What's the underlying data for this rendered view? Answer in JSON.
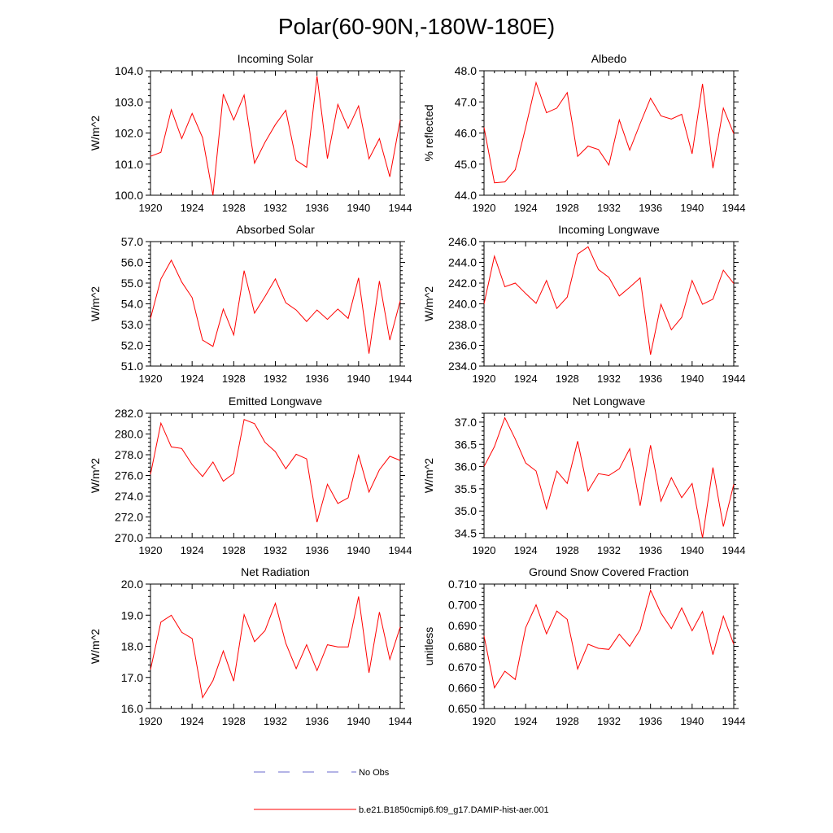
{
  "title": "Polar(60-90N,-180W-180E)",
  "colors": {
    "model_line": "#ff0000",
    "obs_line": "#6a6acd",
    "axis": "#000000"
  },
  "legend": {
    "obs_label": "No Obs",
    "model_label": "b.e21.B1850cmip6.f09_g17.DAMIP-hist-aer.001"
  },
  "chart_data": [
    {
      "type": "line",
      "title": "Incoming Solar",
      "xlabel": "",
      "ylabel": "W/m^2",
      "xlim": [
        1920,
        1944
      ],
      "ylim": [
        100.0,
        104.0
      ],
      "xticks": [
        1920,
        1924,
        1928,
        1932,
        1936,
        1940,
        1944
      ],
      "yticks": [
        "100.0",
        "101.0",
        "102.0",
        "103.0",
        "104.0"
      ],
      "series": [
        {
          "name": "b.e21.B1850cmip6.f09_g17.DAMIP-hist-aer.001",
          "x": [
            1920,
            1921,
            1922,
            1923,
            1924,
            1925,
            1926,
            1927,
            1928,
            1929,
            1930,
            1931,
            1932,
            1933,
            1934,
            1935,
            1936,
            1937,
            1938,
            1939,
            1940,
            1941,
            1942,
            1943,
            1944
          ],
          "values": [
            101.25,
            101.38,
            102.75,
            101.82,
            102.63,
            101.85,
            100.0,
            103.25,
            102.42,
            103.22,
            101.03,
            101.7,
            102.27,
            102.73,
            101.12,
            100.9,
            103.83,
            101.18,
            102.92,
            102.15,
            102.87,
            101.17,
            101.82,
            100.59,
            102.43
          ]
        }
      ]
    },
    {
      "type": "line",
      "title": "Albedo",
      "xlabel": "",
      "ylabel": "% reflected",
      "xlim": [
        1920,
        1944
      ],
      "ylim": [
        44.0,
        48.0
      ],
      "xticks": [
        1920,
        1924,
        1928,
        1932,
        1936,
        1940,
        1944
      ],
      "yticks": [
        "44.0",
        "45.0",
        "46.0",
        "47.0",
        "48.0"
      ],
      "series": [
        {
          "name": "b.e21.B1850cmip6.f09_g17.DAMIP-hist-aer.001",
          "x": [
            1920,
            1921,
            1922,
            1923,
            1924,
            1925,
            1926,
            1927,
            1928,
            1929,
            1930,
            1931,
            1932,
            1933,
            1934,
            1935,
            1936,
            1937,
            1938,
            1939,
            1940,
            1941,
            1942,
            1943,
            1944
          ],
          "values": [
            46.18,
            44.4,
            44.43,
            44.82,
            46.18,
            47.62,
            46.65,
            46.8,
            47.3,
            45.25,
            45.58,
            45.47,
            44.97,
            46.42,
            45.45,
            46.3,
            47.12,
            46.55,
            46.45,
            46.6,
            45.33,
            47.58,
            44.87,
            46.8,
            45.98
          ]
        }
      ]
    },
    {
      "type": "line",
      "title": "Absorbed Solar",
      "xlabel": "",
      "ylabel": "W/m^2",
      "xlim": [
        1920,
        1944
      ],
      "ylim": [
        51.0,
        57.0
      ],
      "xticks": [
        1920,
        1924,
        1928,
        1932,
        1936,
        1940,
        1944
      ],
      "yticks": [
        "51.0",
        "52.0",
        "53.0",
        "54.0",
        "55.0",
        "56.0",
        "57.0"
      ],
      "series": [
        {
          "name": "b.e21.B1850cmip6.f09_g17.DAMIP-hist-aer.001",
          "x": [
            1920,
            1921,
            1922,
            1923,
            1924,
            1925,
            1926,
            1927,
            1928,
            1929,
            1930,
            1931,
            1932,
            1933,
            1934,
            1935,
            1936,
            1937,
            1938,
            1939,
            1940,
            1941,
            1942,
            1943,
            1944
          ],
          "values": [
            53.3,
            55.2,
            56.1,
            55.05,
            54.3,
            52.25,
            51.95,
            53.75,
            52.5,
            55.6,
            53.55,
            54.35,
            55.2,
            54.05,
            53.7,
            53.15,
            53.7,
            53.25,
            53.75,
            53.3,
            55.25,
            51.6,
            55.1,
            52.25,
            54.15
          ]
        }
      ]
    },
    {
      "type": "line",
      "title": "Incoming Longwave",
      "xlabel": "",
      "ylabel": "W/m^2",
      "xlim": [
        1920,
        1944
      ],
      "ylim": [
        234.0,
        246.0
      ],
      "xticks": [
        1920,
        1924,
        1928,
        1932,
        1936,
        1940,
        1944
      ],
      "yticks": [
        "234.0",
        "236.0",
        "238.0",
        "240.0",
        "242.0",
        "244.0",
        "246.0"
      ],
      "series": [
        {
          "name": "b.e21.B1850cmip6.f09_g17.DAMIP-hist-aer.001",
          "x": [
            1920,
            1921,
            1922,
            1923,
            1924,
            1925,
            1926,
            1927,
            1928,
            1929,
            1930,
            1931,
            1932,
            1933,
            1934,
            1935,
            1936,
            1937,
            1938,
            1939,
            1940,
            1941,
            1942,
            1943,
            1944
          ],
          "values": [
            240.0,
            244.6,
            241.65,
            242.0,
            241.0,
            240.05,
            242.25,
            239.55,
            240.65,
            244.8,
            245.5,
            243.3,
            242.55,
            240.75,
            241.6,
            242.5,
            235.1,
            239.95,
            237.5,
            238.7,
            242.25,
            239.95,
            240.45,
            243.25,
            241.95
          ]
        }
      ]
    },
    {
      "type": "line",
      "title": "Emitted Longwave",
      "xlabel": "",
      "ylabel": "W/m^2",
      "xlim": [
        1920,
        1944
      ],
      "ylim": [
        270.0,
        282.0
      ],
      "xticks": [
        1920,
        1924,
        1928,
        1932,
        1936,
        1940,
        1944
      ],
      "yticks": [
        "270.0",
        "272.0",
        "274.0",
        "276.0",
        "278.0",
        "280.0",
        "282.0"
      ],
      "series": [
        {
          "name": "b.e21.B1850cmip6.f09_g17.DAMIP-hist-aer.001",
          "x": [
            1920,
            1921,
            1922,
            1923,
            1924,
            1925,
            1926,
            1927,
            1928,
            1929,
            1930,
            1931,
            1932,
            1933,
            1934,
            1935,
            1936,
            1937,
            1938,
            1939,
            1940,
            1941,
            1942,
            1943,
            1944
          ],
          "values": [
            276.1,
            281.05,
            278.75,
            278.6,
            277.05,
            275.9,
            277.3,
            275.45,
            276.2,
            281.4,
            281.0,
            279.2,
            278.3,
            276.65,
            278.05,
            277.6,
            271.5,
            275.15,
            273.3,
            273.85,
            277.95,
            274.4,
            276.55,
            277.85,
            277.45
          ]
        }
      ]
    },
    {
      "type": "line",
      "title": "Net Longwave",
      "xlabel": "",
      "ylabel": "W/m^2",
      "xlim": [
        1920,
        1944
      ],
      "ylim": [
        34.4,
        37.2
      ],
      "xticks": [
        1920,
        1924,
        1928,
        1932,
        1936,
        1940,
        1944
      ],
      "yticks": [
        "34.5",
        "35.0",
        "35.5",
        "36.0",
        "36.5",
        "37.0"
      ],
      "series": [
        {
          "name": "b.e21.B1850cmip6.f09_g17.DAMIP-hist-aer.001",
          "x": [
            1920,
            1921,
            1922,
            1923,
            1924,
            1925,
            1926,
            1927,
            1928,
            1929,
            1930,
            1931,
            1932,
            1933,
            1934,
            1935,
            1936,
            1937,
            1938,
            1939,
            1940,
            1941,
            1942,
            1943,
            1944
          ],
          "values": [
            36.0,
            36.45,
            37.1,
            36.62,
            36.08,
            35.9,
            35.05,
            35.9,
            35.62,
            36.57,
            35.45,
            35.84,
            35.8,
            35.95,
            36.4,
            35.12,
            36.48,
            35.22,
            35.75,
            35.3,
            35.62,
            34.4,
            35.98,
            34.65,
            35.6
          ]
        }
      ]
    },
    {
      "type": "line",
      "title": "Net Radiation",
      "xlabel": "",
      "ylabel": "W/m^2",
      "xlim": [
        1920,
        1944
      ],
      "ylim": [
        16.0,
        20.0
      ],
      "xticks": [
        1920,
        1924,
        1928,
        1932,
        1936,
        1940,
        1944
      ],
      "yticks": [
        "16.0",
        "17.0",
        "18.0",
        "19.0",
        "20.0"
      ],
      "series": [
        {
          "name": "b.e21.B1850cmip6.f09_g17.DAMIP-hist-aer.001",
          "x": [
            1920,
            1921,
            1922,
            1923,
            1924,
            1925,
            1926,
            1927,
            1928,
            1929,
            1930,
            1931,
            1932,
            1933,
            1934,
            1935,
            1936,
            1937,
            1938,
            1939,
            1940,
            1941,
            1942,
            1943,
            1944
          ],
          "values": [
            17.25,
            18.78,
            19.0,
            18.45,
            18.25,
            16.35,
            16.9,
            17.85,
            16.88,
            19.02,
            18.15,
            18.5,
            19.38,
            18.1,
            17.28,
            18.05,
            17.22,
            18.05,
            17.98,
            17.98,
            19.6,
            17.15,
            19.1,
            17.58,
            18.62
          ]
        }
      ]
    },
    {
      "type": "line",
      "title": "Ground Snow Covered Fraction",
      "xlabel": "",
      "ylabel": "unitless",
      "xlim": [
        1920,
        1944
      ],
      "ylim": [
        0.65,
        0.71
      ],
      "xticks": [
        1920,
        1924,
        1928,
        1932,
        1936,
        1940,
        1944
      ],
      "yticks": [
        "0.650",
        "0.660",
        "0.670",
        "0.680",
        "0.690",
        "0.700",
        "0.710"
      ],
      "series": [
        {
          "name": "b.e21.B1850cmip6.f09_g17.DAMIP-hist-aer.001",
          "x": [
            1920,
            1921,
            1922,
            1923,
            1924,
            1925,
            1926,
            1927,
            1928,
            1929,
            1930,
            1931,
            1932,
            1933,
            1934,
            1935,
            1936,
            1937,
            1938,
            1939,
            1940,
            1941,
            1942,
            1943,
            1944
          ],
          "values": [
            0.685,
            0.66,
            0.668,
            0.664,
            0.689,
            0.7,
            0.686,
            0.697,
            0.693,
            0.669,
            0.681,
            0.679,
            0.6785,
            0.6858,
            0.68,
            0.688,
            0.707,
            0.696,
            0.6885,
            0.6985,
            0.6875,
            0.6968,
            0.676,
            0.6945,
            0.681
          ]
        }
      ]
    }
  ]
}
